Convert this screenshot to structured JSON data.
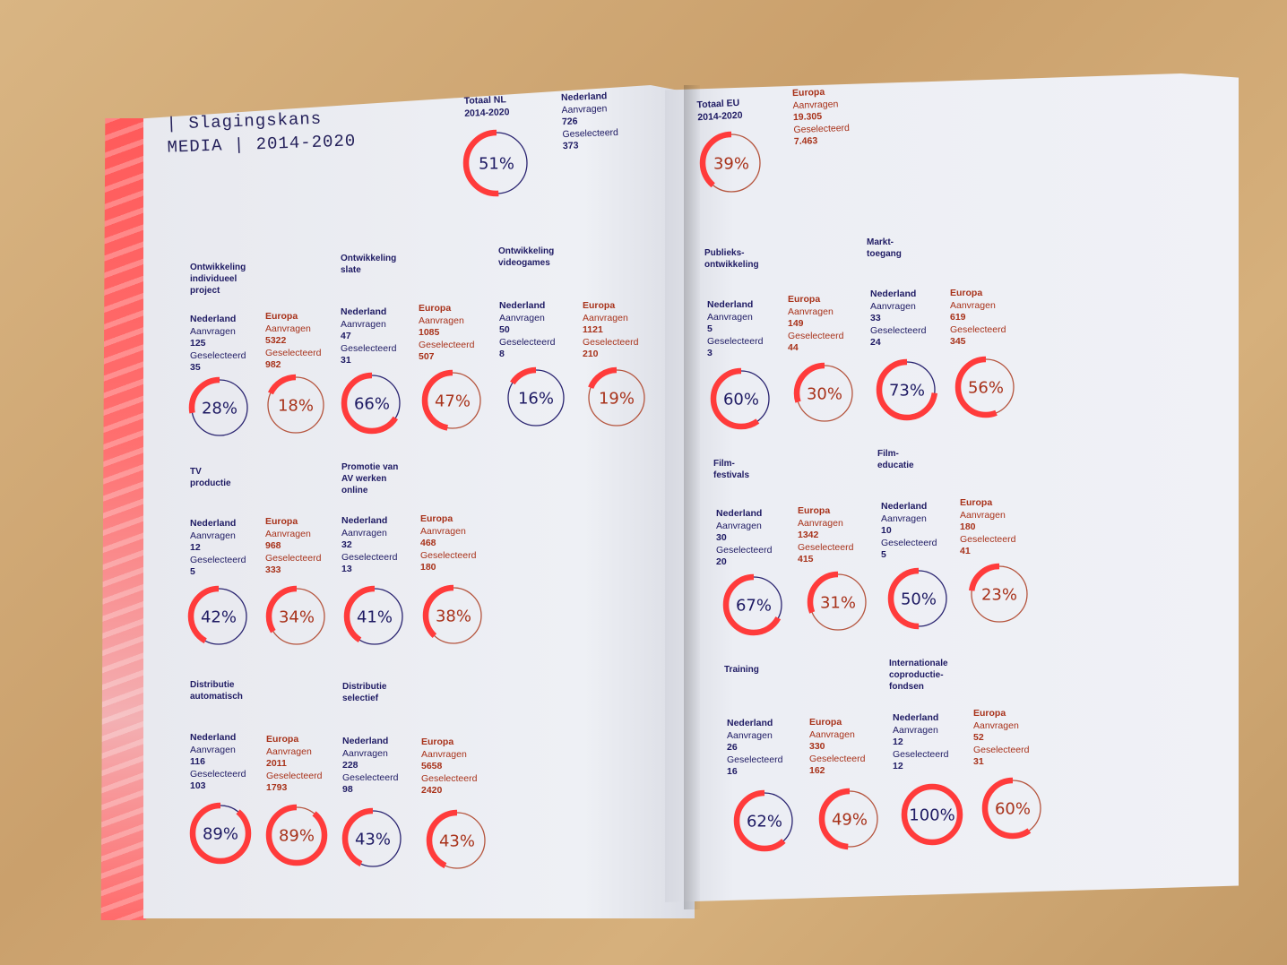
{
  "colors": {
    "nl": "#1e1a63",
    "eu": "#a8321a",
    "accent": "#ff3b3b",
    "eu_track": "#b5553e",
    "nl_track": "#2a2470"
  },
  "title": {
    "line1": "| Slagingskans",
    "line2": "MEDIA | 2014-2020"
  },
  "labels": {
    "aanvragen": "Aanvragen",
    "geselecteerd": "Geselecteerd"
  },
  "totals": {
    "nl": {
      "title_line1": "Totaal NL",
      "title_line2": "2014-2020",
      "region": "Nederland",
      "aanvragen": "726",
      "geselecteerd": "373",
      "pct_label": "51%",
      "pct": 51
    },
    "eu": {
      "title_line1": "Totaal EU",
      "title_line2": "2014-2020",
      "region": "Europa",
      "aanvragen": "19.305",
      "geselecteerd": "7.463",
      "pct_label": "39%",
      "pct": 39
    }
  },
  "categories": [
    {
      "name": "Ontwikkeling\nindividueel\nproject",
      "nl": {
        "region": "Nederland",
        "aanvragen": "125",
        "geselecteerd": "35",
        "pct_label": "28%",
        "pct": 28
      },
      "eu": {
        "region": "Europa",
        "aanvragen": "5322",
        "geselecteerd": "982",
        "pct_label": "18%",
        "pct": 18
      }
    },
    {
      "name": "Ontwikkeling\nslate",
      "nl": {
        "region": "Nederland",
        "aanvragen": "47",
        "geselecteerd": "31",
        "pct_label": "66%",
        "pct": 66
      },
      "eu": {
        "region": "Europa",
        "aanvragen": "1085",
        "geselecteerd": "507",
        "pct_label": "47%",
        "pct": 47
      }
    },
    {
      "name": "Ontwikkeling\nvideogames",
      "nl": {
        "region": "Nederland",
        "aanvragen": "50",
        "geselecteerd": "8",
        "pct_label": "16%",
        "pct": 16
      },
      "eu": {
        "region": "Europa",
        "aanvragen": "1121",
        "geselecteerd": "210",
        "pct_label": "19%",
        "pct": 19
      }
    },
    {
      "name": "TV\nproductie",
      "nl": {
        "region": "Nederland",
        "aanvragen": "12",
        "geselecteerd": "5",
        "pct_label": "42%",
        "pct": 42
      },
      "eu": {
        "region": "Europa",
        "aanvragen": "968",
        "geselecteerd": "333",
        "pct_label": "34%",
        "pct": 34
      }
    },
    {
      "name": "Promotie van\nAV werken\nonline",
      "nl": {
        "region": "Nederland",
        "aanvragen": "32",
        "geselecteerd": "13",
        "pct_label": "41%",
        "pct": 41
      },
      "eu": {
        "region": "Europa",
        "aanvragen": "468",
        "geselecteerd": "180",
        "pct_label": "38%",
        "pct": 38
      }
    },
    {
      "name": "Distributie\nautomatisch",
      "nl": {
        "region": "Nederland",
        "aanvragen": "116",
        "geselecteerd": "103",
        "pct_label": "89%",
        "pct": 89
      },
      "eu": {
        "region": "Europa",
        "aanvragen": "2011",
        "geselecteerd": "1793",
        "pct_label": "89%",
        "pct": 89
      }
    },
    {
      "name": "Distributie\nselectief",
      "nl": {
        "region": "Nederland",
        "aanvragen": "228",
        "geselecteerd": "98",
        "pct_label": "43%",
        "pct": 43
      },
      "eu": {
        "region": "Europa",
        "aanvragen": "5658",
        "geselecteerd": "2420",
        "pct_label": "43%",
        "pct": 43
      }
    },
    {
      "name": "Publieks-\nontwikkeling",
      "nl": {
        "region": "Nederland",
        "aanvragen": "5",
        "geselecteerd": "3",
        "pct_label": "60%",
        "pct": 60
      },
      "eu": {
        "region": "Europa",
        "aanvragen": "149",
        "geselecteerd": "44",
        "pct_label": "30%",
        "pct": 30
      }
    },
    {
      "name": "Markt-\ntoegang",
      "nl": {
        "region": "Nederland",
        "aanvragen": "33",
        "geselecteerd": "24",
        "pct_label": "73%",
        "pct": 73
      },
      "eu": {
        "region": "Europa",
        "aanvragen": "619",
        "geselecteerd": "345",
        "pct_label": "56%",
        "pct": 56
      }
    },
    {
      "name": "Film-\nfestivals",
      "nl": {
        "region": "Nederland",
        "aanvragen": "30",
        "geselecteerd": "20",
        "pct_label": "67%",
        "pct": 67
      },
      "eu": {
        "region": "Europa",
        "aanvragen": "1342",
        "geselecteerd": "415",
        "pct_label": "31%",
        "pct": 31
      }
    },
    {
      "name": "Film-\neducatie",
      "nl": {
        "region": "Nederland",
        "aanvragen": "10",
        "geselecteerd": "5",
        "pct_label": "50%",
        "pct": 50
      },
      "eu": {
        "region": "Europa",
        "aanvragen": "180",
        "geselecteerd": "41",
        "pct_label": "23%",
        "pct": 23
      }
    },
    {
      "name": "Training",
      "nl": {
        "region": "Nederland",
        "aanvragen": "26",
        "geselecteerd": "16",
        "pct_label": "62%",
        "pct": 62
      },
      "eu": {
        "region": "Europa",
        "aanvragen": "330",
        "geselecteerd": "162",
        "pct_label": "49%",
        "pct": 49
      }
    },
    {
      "name": "Internationale\ncoproductie-\nfondsen",
      "nl": {
        "region": "Nederland",
        "aanvragen": "12",
        "geselecteerd": "12",
        "pct_label": "100%",
        "pct": 100
      },
      "eu": {
        "region": "Europa",
        "aanvragen": "52",
        "geselecteerd": "31",
        "pct_label": "60%",
        "pct": 60
      }
    }
  ]
}
